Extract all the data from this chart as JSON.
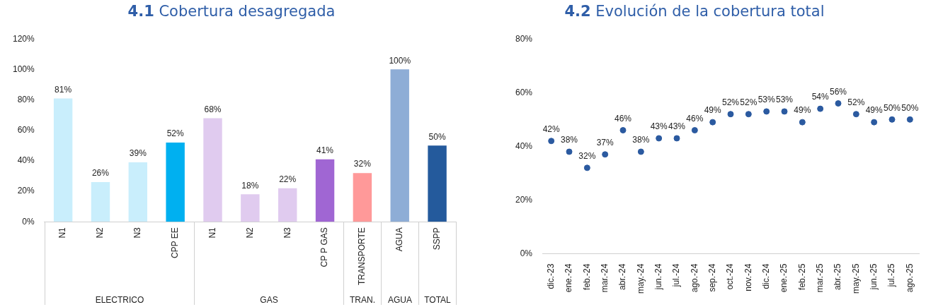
{
  "chart_data": [
    {
      "type": "bar",
      "title": "4.1 Cobertura desagregada",
      "categories": [
        "N1",
        "N2",
        "N3",
        "CPP EE",
        "N1",
        "N2",
        "N3",
        "CP P GAS",
        "TRANSPORTE",
        "AGUA",
        "SSPP"
      ],
      "values": [
        81,
        26,
        39,
        52,
        68,
        18,
        22,
        41,
        32,
        100,
        50
      ],
      "colors": [
        "#c9eefc",
        "#c9eefc",
        "#c9eefc",
        "#00b0f0",
        "#e0cbef",
        "#e0cbef",
        "#e0cbef",
        "#a066d3",
        "#ff9999",
        "#8eadd6",
        "#245a9c"
      ],
      "value_labels": [
        "81%",
        "26%",
        "39%",
        "52%",
        "68%",
        "18%",
        "22%",
        "41%",
        "32%",
        "100%",
        "50%"
      ],
      "annotations": [
        "ELECTRICO",
        "GAS",
        "TRAN.",
        "AGUA",
        "TOTAL"
      ],
      "ylim": [
        0,
        120
      ],
      "yticks": [
        {
          "value": 0,
          "label": "0%"
        },
        {
          "value": 20,
          "label": "20%"
        },
        {
          "value": 40,
          "label": "40%"
        },
        {
          "value": 60,
          "label": "60%"
        },
        {
          "value": 80,
          "label": "80%"
        },
        {
          "value": 100,
          "label": "100%"
        },
        {
          "value": 120,
          "label": "120%"
        }
      ],
      "grid": false,
      "legend": false
    },
    {
      "type": "scatter",
      "title": "4.2 Evolución de la cobertura total",
      "categories": [
        "dic.-23",
        "ene.-24",
        "feb.-24",
        "mar.-24",
        "abr.-24",
        "may.-24",
        "jun.-24",
        "jul.-24",
        "ago.-24",
        "sep.-24",
        "oct.-24",
        "nov.-24",
        "dic.-24",
        "ene.-25",
        "feb.-25",
        "mar.-25",
        "abr.-25",
        "may.-25",
        "jun.-25",
        "jul.-25",
        "ago.-25"
      ],
      "series": [
        {
          "color": "#2b5aa0",
          "values": [
            42,
            38,
            32,
            37,
            46,
            38,
            43,
            43,
            46,
            49,
            52,
            52,
            53,
            53,
            49,
            54,
            56,
            52,
            49,
            50,
            50
          ],
          "value_labels": [
            "42%",
            "38%",
            "32%",
            "37%",
            "46%",
            "38%",
            "43%",
            "43%",
            "46%",
            "49%",
            "52%",
            "52%",
            "53%",
            "53%",
            "49%",
            "54%",
            "56%",
            "52%",
            "49%",
            "50%",
            "50%"
          ]
        }
      ],
      "marker": "circle",
      "ylim": [
        0,
        80
      ],
      "yticks": [
        {
          "value": 0,
          "label": "0%"
        },
        {
          "value": 20,
          "label": "20%"
        },
        {
          "value": 40,
          "label": "40%"
        },
        {
          "value": 60,
          "label": "60%"
        },
        {
          "value": 80,
          "label": "80%"
        }
      ],
      "grid": false,
      "legend": false
    }
  ]
}
